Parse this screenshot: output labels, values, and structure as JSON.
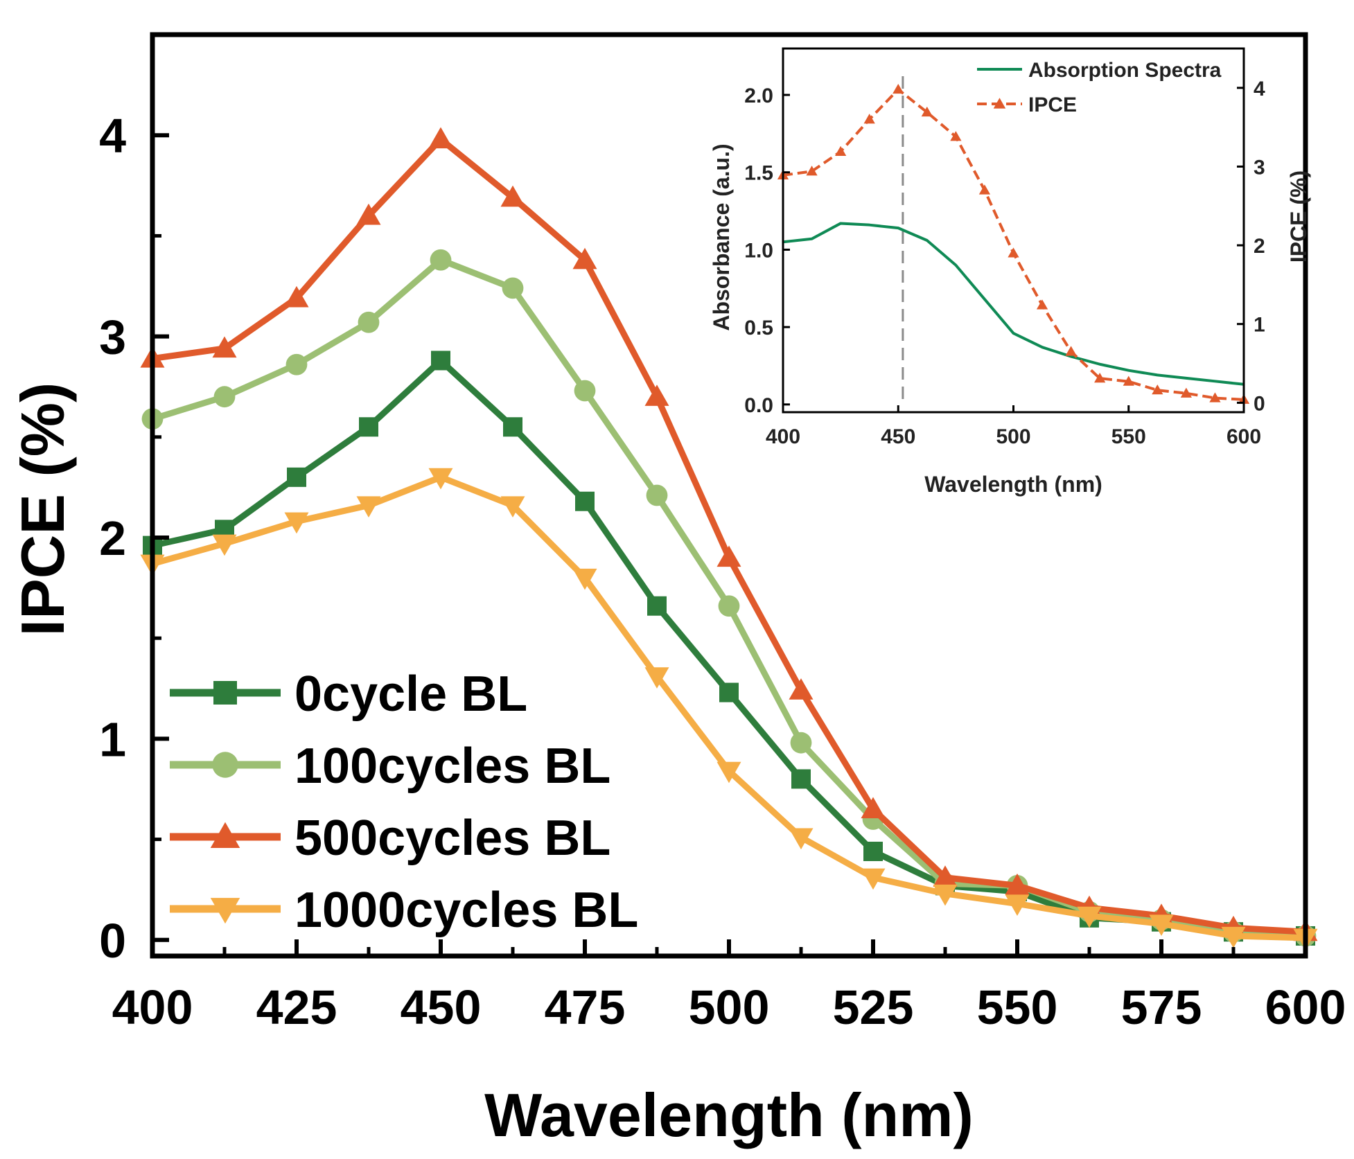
{
  "chart_data": [
    {
      "type": "line",
      "name": "main",
      "title": "",
      "xlabel": "Wavelength (nm)",
      "ylabel": "IPCE (%)",
      "xlim": [
        400,
        600
      ],
      "ylim": [
        -0.08,
        4.5
      ],
      "xticks": [
        400,
        425,
        450,
        475,
        500,
        525,
        550,
        575,
        600
      ],
      "yticks": [
        0,
        1,
        2,
        3,
        4
      ],
      "x": [
        400,
        412.5,
        425,
        437.5,
        450,
        462.5,
        475,
        487.5,
        500,
        512.5,
        525,
        537.5,
        550,
        562.5,
        575,
        587.5,
        600
      ],
      "legend_position": "lower-left",
      "series": [
        {
          "name": "0cycle BL",
          "color": "#2e7d3c",
          "marker": "square",
          "values": [
            1.96,
            2.04,
            2.3,
            2.55,
            2.88,
            2.55,
            2.18,
            1.66,
            1.23,
            0.8,
            0.44,
            0.27,
            0.24,
            0.11,
            0.09,
            0.04,
            0.02
          ]
        },
        {
          "name": "100cycles BL",
          "color": "#9cbf73",
          "marker": "circle",
          "values": [
            2.59,
            2.7,
            2.86,
            3.07,
            3.38,
            3.24,
            2.73,
            2.21,
            1.66,
            0.98,
            0.6,
            0.28,
            0.27,
            0.14,
            0.1,
            0.04,
            0.02
          ]
        },
        {
          "name": "500cycles BL",
          "color": "#e05a2b",
          "marker": "triangle-up",
          "values": [
            2.89,
            2.94,
            3.19,
            3.6,
            3.98,
            3.69,
            3.38,
            2.7,
            1.9,
            1.24,
            0.65,
            0.31,
            0.27,
            0.16,
            0.12,
            0.06,
            0.04
          ]
        },
        {
          "name": "1000cycles BL",
          "color": "#f5ad45",
          "marker": "triangle-down",
          "values": [
            1.87,
            1.97,
            2.08,
            2.16,
            2.3,
            2.16,
            1.8,
            1.31,
            0.84,
            0.51,
            0.31,
            0.23,
            0.18,
            0.12,
            0.08,
            0.02,
            0.01
          ]
        }
      ]
    },
    {
      "type": "line",
      "name": "inset",
      "title": "",
      "xlabel": "Wavelength (nm)",
      "ylabel": "Absorbance (a.u.)",
      "ylabel_right": "IPCE (%)",
      "xlim": [
        400,
        600
      ],
      "ylim": [
        -0.05,
        2.3
      ],
      "ylim_right": [
        -0.12,
        4.5
      ],
      "xticks": [
        400,
        450,
        500,
        550,
        600
      ],
      "yticks": [
        0.0,
        0.5,
        1.0,
        1.5,
        2.0
      ],
      "ytick_labels": [
        "0.0",
        "0.5",
        "1.0",
        "1.5",
        "2.0"
      ],
      "yticks_right": [
        0,
        1,
        2,
        3,
        4
      ],
      "reference_line_x": 452,
      "legend_position": "top-right",
      "series": [
        {
          "name": "Absorption Spectra",
          "color": "#0f8a55",
          "marker": "none",
          "axis": "left",
          "x": [
            400,
            412.5,
            425,
            437.5,
            450,
            462.5,
            475,
            487.5,
            500,
            512.5,
            525,
            537.5,
            550,
            562.5,
            575,
            587.5,
            600
          ],
          "values": [
            1.05,
            1.07,
            1.17,
            1.16,
            1.14,
            1.06,
            0.9,
            0.68,
            0.46,
            0.37,
            0.31,
            0.26,
            0.22,
            0.19,
            0.17,
            0.15,
            0.13
          ]
        },
        {
          "name": "IPCE",
          "color": "#e05a2b",
          "marker": "triangle-up",
          "dashed": true,
          "axis": "right",
          "x": [
            400,
            412.5,
            425,
            437.5,
            450,
            462.5,
            475,
            487.5,
            500,
            512.5,
            525,
            537.5,
            550,
            562.5,
            575,
            587.5,
            600
          ],
          "values": [
            2.89,
            2.94,
            3.19,
            3.6,
            3.98,
            3.69,
            3.38,
            2.7,
            1.9,
            1.24,
            0.65,
            0.31,
            0.27,
            0.16,
            0.12,
            0.06,
            0.04
          ]
        }
      ]
    }
  ]
}
